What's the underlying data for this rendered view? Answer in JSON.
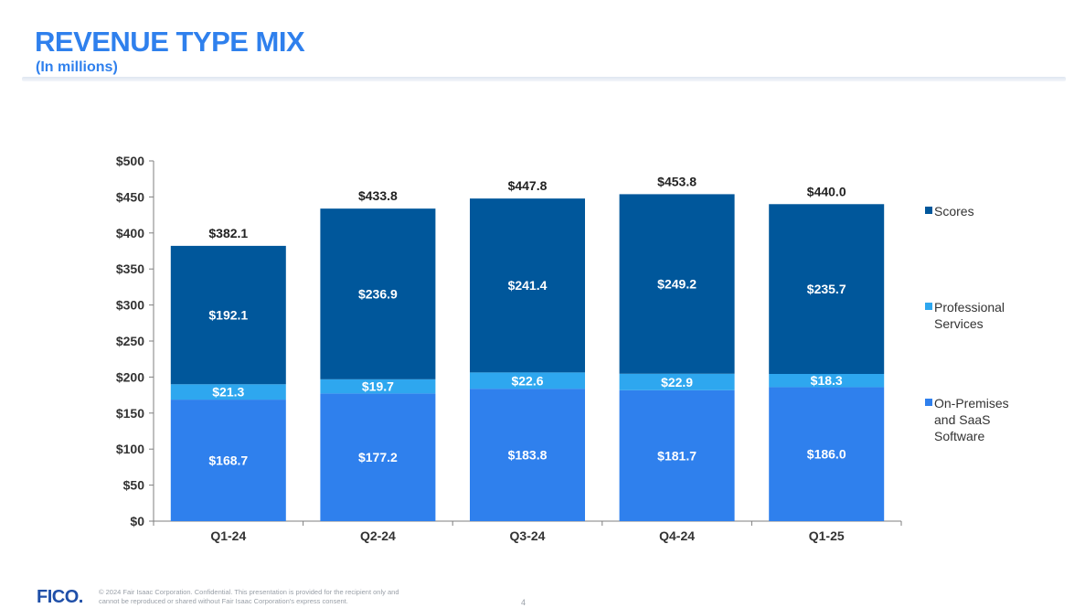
{
  "header": {
    "title": "REVENUE TYPE MIX",
    "subtitle": "(In millions)"
  },
  "chart_data": {
    "type": "bar",
    "stacked": true,
    "categories": [
      "Q1-24",
      "Q2-24",
      "Q3-24",
      "Q4-24",
      "Q1-25"
    ],
    "series": [
      {
        "name": "On-Premises and SaaS Software",
        "color": "#2f80ed",
        "labels": [
          "$168.7",
          "$177.2",
          "$183.8",
          "$181.7",
          "$186.0"
        ],
        "values": [
          168.7,
          177.2,
          183.8,
          181.7,
          186.0
        ]
      },
      {
        "name": "Professional Services",
        "color": "#2ea7ef",
        "labels": [
          "$21.3",
          "$19.7",
          "$22.6",
          "$22.9",
          "$18.3"
        ],
        "values": [
          21.3,
          19.7,
          22.6,
          22.9,
          18.3
        ]
      },
      {
        "name": "Scores",
        "color": "#00579b",
        "labels": [
          "$192.1",
          "$236.9",
          "$241.4",
          "$249.2",
          "$235.7"
        ],
        "values": [
          192.1,
          236.9,
          241.4,
          249.2,
          235.7
        ]
      }
    ],
    "totals": [
      382.1,
      433.8,
      447.8,
      453.8,
      440.0
    ],
    "total_labels": [
      "$382.1",
      "$433.8",
      "$447.8",
      "$453.8",
      "$440.0"
    ],
    "ylim": [
      0,
      500
    ],
    "yticks": [
      0,
      50,
      100,
      150,
      200,
      250,
      300,
      350,
      400,
      450,
      500
    ],
    "ytick_labels": [
      "$0",
      "$50",
      "$100",
      "$150",
      "$200",
      "$250",
      "$300",
      "$350",
      "$400",
      "$450",
      "$500"
    ],
    "legend": "right",
    "grid": false
  },
  "legend": {
    "scores": "Scores",
    "professional": "Professional Services",
    "onprem": "On-Premises and SaaS Software"
  },
  "footer": {
    "logo": "FICO.",
    "text": "© 2024 Fair Isaac Corporation. Confidential. This presentation is provided for the recipient only and cannot be reproduced or shared without Fair Isaac Corporation's express consent.",
    "page": "4"
  }
}
